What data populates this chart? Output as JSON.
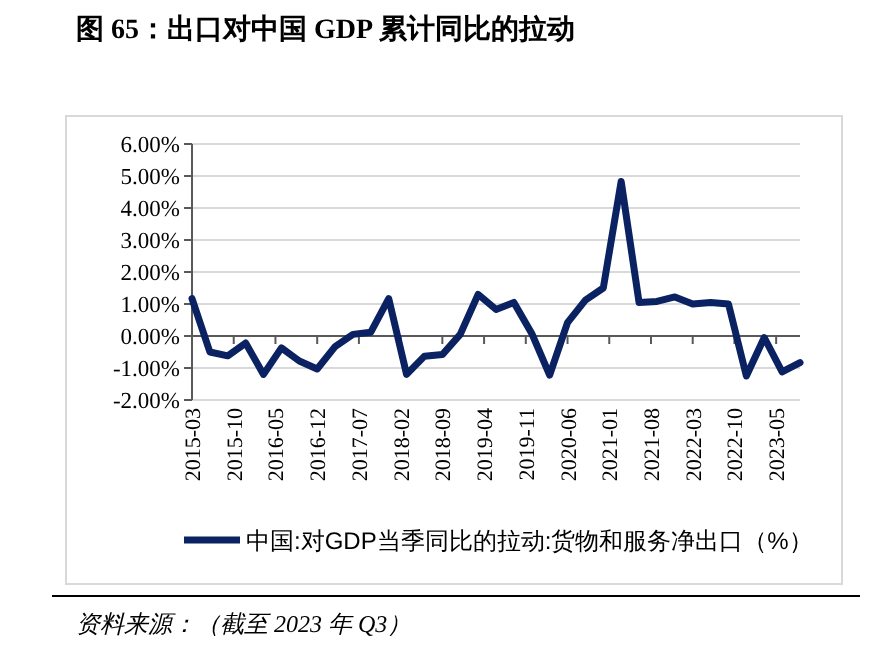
{
  "chart_data": {
    "type": "line",
    "title": "图 65：出口对中国 GDP 累计同比的拉动",
    "x": [
      "2015-03",
      "2015-06",
      "2015-09",
      "2015-12",
      "2016-03",
      "2016-06",
      "2016-09",
      "2016-12",
      "2017-03",
      "2017-06",
      "2017-09",
      "2017-12",
      "2018-03",
      "2018-06",
      "2018-09",
      "2018-12",
      "2019-03",
      "2019-06",
      "2019-09",
      "2019-12",
      "2020-03",
      "2020-06",
      "2020-09",
      "2020-12",
      "2021-03",
      "2021-06",
      "2021-09",
      "2021-12",
      "2022-03",
      "2022-06",
      "2022-09",
      "2022-12",
      "2023-03",
      "2023-06",
      "2023-09"
    ],
    "series": [
      {
        "name": "中国:对GDP当季同比的拉动:货物和服务净出口（%）",
        "color": "#0b2262",
        "values": [
          1.17,
          -0.5,
          -0.62,
          -0.22,
          -1.2,
          -0.37,
          -0.78,
          -1.03,
          -0.33,
          0.05,
          0.12,
          1.17,
          -1.2,
          -0.63,
          -0.58,
          0.05,
          1.3,
          0.83,
          1.05,
          0.08,
          -1.22,
          0.42,
          1.12,
          1.5,
          4.83,
          1.05,
          1.08,
          1.22,
          1.0,
          1.05,
          1.0,
          -1.25,
          -0.05,
          -1.12,
          -0.83
        ]
      }
    ],
    "xlim": [
      "2015-03",
      "2023-09"
    ],
    "xticks": [
      "2015-03",
      "2015-10",
      "2016-05",
      "2016-12",
      "2017-07",
      "2018-02",
      "2018-09",
      "2019-04",
      "2019-11",
      "2020-06",
      "2021-01",
      "2021-08",
      "2022-03",
      "2022-10",
      "2023-05"
    ],
    "ylim": [
      -2,
      6
    ],
    "yticks": [
      {
        "value": -2,
        "label": "-2.00%"
      },
      {
        "value": -1,
        "label": "-1.00%"
      },
      {
        "value": 0,
        "label": "0.00%"
      },
      {
        "value": 1,
        "label": "1.00%"
      },
      {
        "value": 2,
        "label": "2.00%"
      },
      {
        "value": 3,
        "label": "3.00%"
      },
      {
        "value": 4,
        "label": "4.00%"
      },
      {
        "value": 5,
        "label": "5.00%"
      },
      {
        "value": 6,
        "label": "6.00%"
      }
    ],
    "grid": "y",
    "legend": "bottom",
    "line_style": "solid",
    "annotations": [
      "资料来源：（截至 2023 年 Q3）"
    ]
  }
}
